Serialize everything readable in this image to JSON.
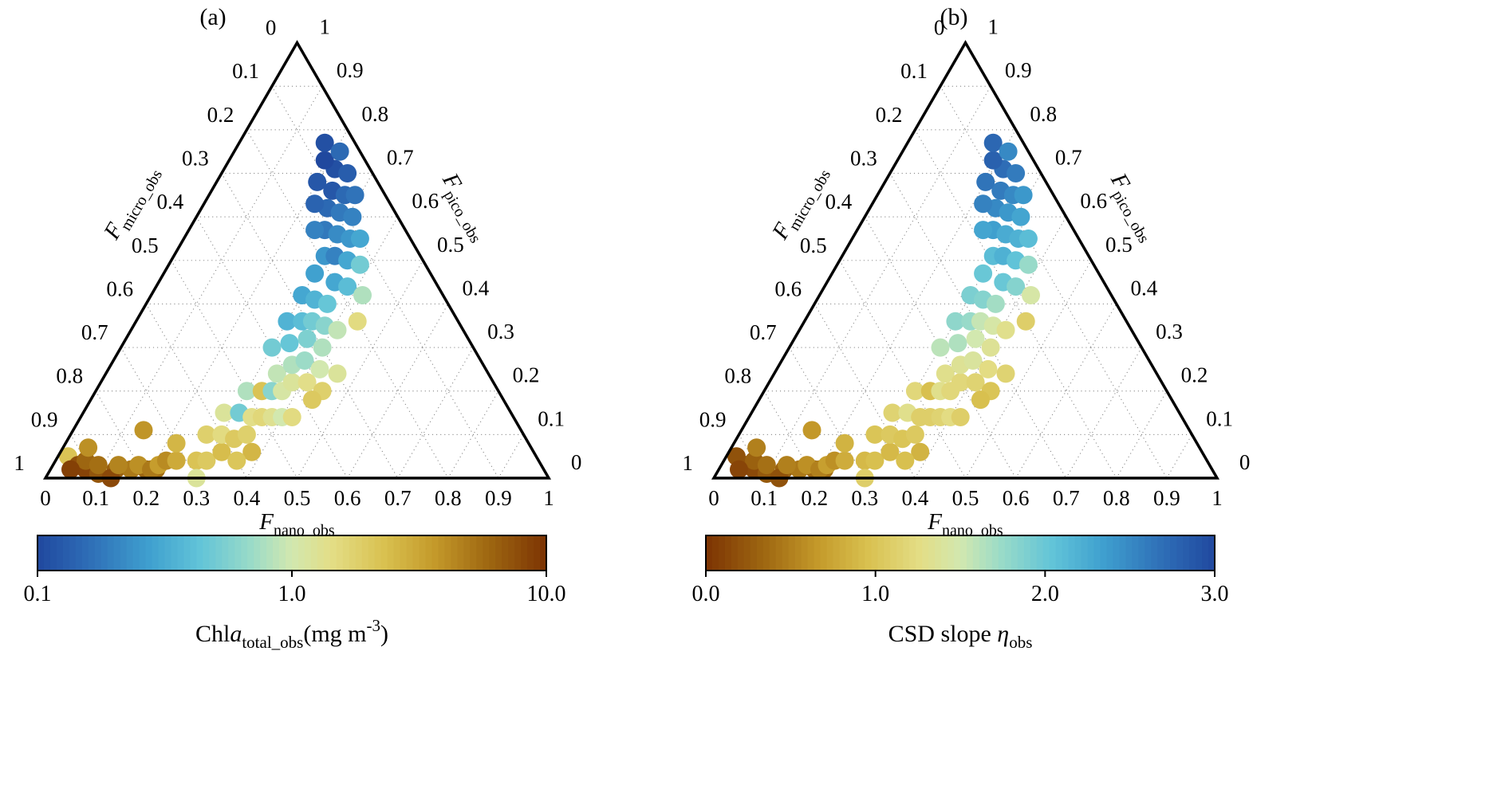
{
  "figure": {
    "background": "#ffffff",
    "panels": [
      {
        "letter": "(a)",
        "colorbar": {
          "ticks": [
            "0.1",
            "1.0",
            "10.0"
          ],
          "scale": "log",
          "domain": [
            0.1,
            10
          ],
          "reverse": false,
          "value_index": 3,
          "label_parts": [
            {
              "t": "Chl"
            },
            {
              "t": "a",
              "italic": true
            },
            {
              "t": "total_obs",
              "sub": true
            },
            {
              "t": "(mg m"
            },
            {
              "t": "-3",
              "sup": true
            },
            {
              "t": ")"
            }
          ]
        }
      },
      {
        "letter": "(b)",
        "colorbar": {
          "ticks": [
            "0.0",
            "1.0",
            "2.0",
            "3.0"
          ],
          "scale": "linear",
          "domain": [
            0,
            3
          ],
          "reverse": true,
          "value_index": 4,
          "label_parts": [
            {
              "t": "CSD slope "
            },
            {
              "t": "η",
              "italic": true
            },
            {
              "t": "obs",
              "sub": true
            }
          ]
        }
      }
    ],
    "axes": {
      "left": {
        "symbol": "F",
        "sub": "micro_obs",
        "ticks": [
          "0",
          "0.1",
          "0.2",
          "0.3",
          "0.4",
          "0.5",
          "0.6",
          "0.7",
          "0.8",
          "0.9",
          "1"
        ]
      },
      "right": {
        "symbol": "F",
        "sub": "pico_obs",
        "ticks": [
          "1",
          "0.9",
          "0.8",
          "0.7",
          "0.6",
          "0.5",
          "0.4",
          "0.3",
          "0.2",
          "0.1",
          "0"
        ]
      },
      "bottom": {
        "symbol": "F",
        "sub": "nano_obs",
        "ticks": [
          "0",
          "0.1",
          "0.2",
          "0.3",
          "0.4",
          "0.5",
          "0.6",
          "0.7",
          "0.8",
          "0.9",
          "1"
        ]
      }
    }
  },
  "colormap": [
    [
      0.0,
      "#20489e"
    ],
    [
      0.1,
      "#2e6db6"
    ],
    [
      0.22,
      "#3fa0cf"
    ],
    [
      0.32,
      "#62c4d8"
    ],
    [
      0.42,
      "#9adbc8"
    ],
    [
      0.5,
      "#d2e8af"
    ],
    [
      0.58,
      "#e3dd85"
    ],
    [
      0.68,
      "#d9c150"
    ],
    [
      0.78,
      "#c49a2a"
    ],
    [
      0.88,
      "#a06a12"
    ],
    [
      1.0,
      "#7c3303"
    ]
  ],
  "chart_data": {
    "type": "scatter_ternary",
    "title": "",
    "panel_variables": [
      {
        "panel": "a",
        "color_variable": "Chla_total_obs (mg m-3)",
        "scale": "log",
        "range": [
          0.1,
          10
        ]
      },
      {
        "panel": "b",
        "color_variable": "CSD slope eta_obs",
        "scale": "linear",
        "range": [
          0,
          3
        ]
      }
    ],
    "axis_labels": {
      "left": "F_micro_obs",
      "right": "F_pico_obs",
      "bottom": "F_nano_obs"
    },
    "axis_range": [
      0,
      1
    ],
    "grid_step": 0.1,
    "point_fields": [
      "F_micro_obs",
      "F_nano_obs",
      "F_pico_obs",
      "chla_total_obs",
      "csd_slope_eta_obs"
    ],
    "points": [
      [
        0.93,
        0.02,
        0.05,
        2.2,
        0.2
      ],
      [
        0.92,
        0.05,
        0.03,
        7.5,
        0.2
      ],
      [
        0.91,
        0.07,
        0.02,
        8.5,
        0.15
      ],
      [
        0.9,
        0.06,
        0.04,
        6.0,
        0.3
      ],
      [
        0.89,
        0.1,
        0.01,
        7.0,
        0.25
      ],
      [
        0.88,
        0.09,
        0.03,
        5.5,
        0.4
      ],
      [
        0.85,
        0.13,
        0.02,
        6.5,
        0.3
      ],
      [
        0.87,
        0.13,
        0.0,
        8.0,
        0.2
      ],
      [
        0.82,
        0.16,
        0.02,
        5.0,
        0.45
      ],
      [
        0.84,
        0.13,
        0.03,
        4.5,
        0.5
      ],
      [
        0.79,
        0.19,
        0.02,
        6.0,
        0.35
      ],
      [
        0.77,
        0.21,
        0.02,
        5.5,
        0.4
      ],
      [
        0.88,
        0.05,
        0.07,
        4.0,
        0.5
      ],
      [
        0.94,
        0.04,
        0.02,
        8.8,
        0.12
      ],
      [
        0.8,
        0.17,
        0.03,
        4.0,
        0.6
      ],
      [
        0.78,
        0.2,
        0.02,
        5.0,
        0.5
      ],
      [
        0.76,
        0.21,
        0.03,
        3.5,
        0.7
      ],
      [
        0.74,
        0.22,
        0.04,
        4.2,
        0.6
      ],
      [
        0.72,
        0.24,
        0.04,
        3.0,
        0.8
      ],
      [
        0.7,
        0.22,
        0.08,
        2.6,
        0.85
      ],
      [
        0.68,
        0.28,
        0.04,
        2.2,
        0.9
      ],
      [
        0.75,
        0.14,
        0.11,
        3.8,
        0.65
      ],
      [
        0.7,
        0.3,
        0.0,
        1.2,
        1.1
      ],
      [
        0.66,
        0.3,
        0.04,
        2.0,
        0.95
      ],
      [
        0.63,
        0.27,
        0.1,
        1.8,
        1.0
      ],
      [
        0.62,
        0.32,
        0.06,
        2.4,
        0.9
      ],
      [
        0.6,
        0.3,
        0.1,
        1.5,
        1.05
      ],
      [
        0.58,
        0.33,
        0.09,
        2.0,
        1.0
      ],
      [
        0.57,
        0.28,
        0.15,
        1.2,
        1.15
      ],
      [
        0.55,
        0.35,
        0.1,
        1.8,
        1.05
      ],
      [
        0.54,
        0.31,
        0.15,
        0.5,
        1.3
      ],
      [
        0.52,
        0.34,
        0.14,
        1.4,
        1.1
      ],
      [
        0.5,
        0.36,
        0.14,
        1.6,
        1.1
      ],
      [
        0.5,
        0.3,
        0.2,
        0.8,
        1.2
      ],
      [
        0.48,
        0.38,
        0.14,
        1.3,
        1.15
      ],
      [
        0.47,
        0.33,
        0.2,
        2.2,
        0.95
      ],
      [
        0.46,
        0.4,
        0.14,
        1.0,
        1.25
      ],
      [
        0.45,
        0.35,
        0.2,
        0.6,
        1.3
      ],
      [
        0.44,
        0.42,
        0.14,
        1.5,
        1.1
      ],
      [
        0.43,
        0.37,
        0.2,
        1.1,
        1.2
      ],
      [
        0.56,
        0.38,
        0.06,
        2.6,
        0.85
      ],
      [
        0.6,
        0.36,
        0.04,
        2.1,
        0.95
      ],
      [
        0.42,
        0.34,
        0.24,
        0.9,
        1.3
      ],
      [
        0.4,
        0.38,
        0.22,
        1.2,
        1.2
      ],
      [
        0.4,
        0.3,
        0.3,
        0.5,
        1.6
      ],
      [
        0.38,
        0.36,
        0.26,
        0.8,
        1.35
      ],
      [
        0.37,
        0.41,
        0.22,
        1.4,
        1.15
      ],
      [
        0.36,
        0.33,
        0.31,
        0.45,
        1.65
      ],
      [
        0.35,
        0.38,
        0.27,
        0.7,
        1.4
      ],
      [
        0.34,
        0.3,
        0.36,
        0.35,
        1.8
      ],
      [
        0.33,
        0.42,
        0.25,
        1.0,
        1.25
      ],
      [
        0.32,
        0.36,
        0.32,
        0.55,
        1.5
      ],
      [
        0.31,
        0.33,
        0.36,
        0.4,
        1.75
      ],
      [
        0.3,
        0.4,
        0.3,
        0.8,
        1.35
      ],
      [
        0.29,
        0.35,
        0.36,
        0.5,
        1.55
      ],
      [
        0.28,
        0.3,
        0.42,
        0.3,
        1.9
      ],
      [
        0.27,
        0.38,
        0.35,
        0.6,
        1.45
      ],
      [
        0.26,
        0.33,
        0.41,
        0.35,
        1.85
      ],
      [
        0.25,
        0.41,
        0.34,
        0.9,
        1.3
      ],
      [
        0.24,
        0.36,
        0.4,
        0.45,
        1.7
      ],
      [
        0.23,
        0.3,
        0.47,
        0.28,
        2.0
      ],
      [
        0.35,
        0.45,
        0.2,
        1.8,
        1.0
      ],
      [
        0.3,
        0.46,
        0.24,
        1.2,
        1.15
      ],
      [
        0.38,
        0.44,
        0.18,
        2.0,
        0.95
      ],
      [
        0.2,
        0.35,
        0.45,
        0.3,
        2.0
      ],
      [
        0.19,
        0.3,
        0.51,
        0.25,
        2.1
      ],
      [
        0.18,
        0.38,
        0.44,
        0.4,
        1.85
      ],
      [
        0.17,
        0.32,
        0.51,
        0.2,
        2.2
      ],
      [
        0.16,
        0.27,
        0.57,
        0.18,
        2.35
      ],
      [
        0.15,
        0.35,
        0.5,
        0.3,
        2.05
      ],
      [
        0.14,
        0.3,
        0.56,
        0.22,
        2.25
      ],
      [
        0.13,
        0.25,
        0.62,
        0.15,
        2.5
      ],
      [
        0.12,
        0.33,
        0.55,
        0.25,
        2.2
      ],
      [
        0.11,
        0.28,
        0.61,
        0.18,
        2.4
      ],
      [
        0.1,
        0.24,
        0.66,
        0.12,
        2.6
      ],
      [
        0.09,
        0.31,
        0.6,
        0.2,
        2.3
      ],
      [
        0.08,
        0.27,
        0.65,
        0.15,
        2.5
      ],
      [
        0.07,
        0.22,
        0.71,
        0.11,
        2.7
      ],
      [
        0.06,
        0.29,
        0.65,
        0.17,
        2.4
      ],
      [
        0.05,
        0.25,
        0.7,
        0.13,
        2.6
      ],
      [
        0.1,
        0.35,
        0.55,
        0.3,
        2.1
      ],
      [
        0.12,
        0.2,
        0.68,
        0.12,
        2.65
      ],
      [
        0.15,
        0.22,
        0.63,
        0.14,
        2.55
      ],
      [
        0.18,
        0.25,
        0.57,
        0.2,
        2.3
      ],
      [
        0.08,
        0.19,
        0.73,
        0.1,
        2.8
      ],
      [
        0.06,
        0.17,
        0.77,
        0.11,
        2.75
      ],
      [
        0.13,
        0.38,
        0.49,
        0.5,
        1.75
      ],
      [
        0.16,
        0.42,
        0.42,
        0.8,
        1.45
      ],
      [
        0.2,
        0.44,
        0.36,
        1.5,
        1.1
      ],
      [
        0.04,
        0.21,
        0.75,
        0.15,
        2.5
      ]
    ]
  }
}
